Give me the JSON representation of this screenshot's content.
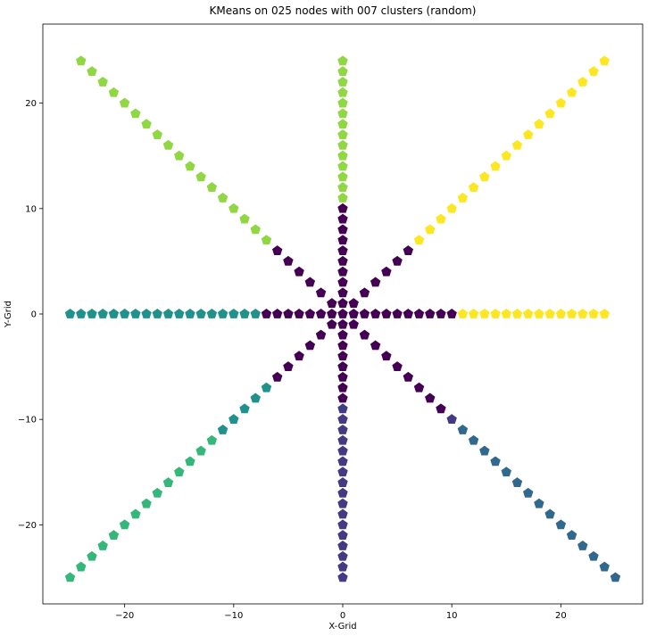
{
  "chart_data": {
    "type": "scatter",
    "title": "KMeans on 025 nodes with 007 clusters (random)",
    "xlabel": "X-Grid",
    "ylabel": "Y-Grid",
    "xlim": [
      -27.5,
      27.5
    ],
    "ylim": [
      -27.5,
      27.5
    ],
    "xticks": [
      -20,
      -10,
      0,
      10,
      20
    ],
    "yticks": [
      -20,
      -10,
      0,
      10,
      20
    ],
    "grid": false,
    "legend": "none",
    "marker": "pentagon",
    "cluster_colors": {
      "c0": "#440154",
      "c1": "#443983",
      "c2": "#31688e",
      "c3": "#21918c",
      "c4": "#35b779",
      "c5": "#90d743",
      "c6": "#fde725"
    },
    "clusters": [
      {
        "id": "c0",
        "points": [
          [
            0,
            0
          ],
          [
            1,
            0
          ],
          [
            2,
            0
          ],
          [
            3,
            0
          ],
          [
            4,
            0
          ],
          [
            5,
            0
          ],
          [
            6,
            0
          ],
          [
            7,
            0
          ],
          [
            8,
            0
          ],
          [
            9,
            0
          ],
          [
            10,
            0
          ],
          [
            -1,
            0
          ],
          [
            -2,
            0
          ],
          [
            -3,
            0
          ],
          [
            -4,
            0
          ],
          [
            -5,
            0
          ],
          [
            -6,
            0
          ],
          [
            -7,
            0
          ],
          [
            0,
            1
          ],
          [
            0,
            2
          ],
          [
            0,
            3
          ],
          [
            0,
            4
          ],
          [
            0,
            5
          ],
          [
            0,
            6
          ],
          [
            0,
            7
          ],
          [
            0,
            8
          ],
          [
            0,
            9
          ],
          [
            0,
            10
          ],
          [
            0,
            -1
          ],
          [
            0,
            -2
          ],
          [
            0,
            -3
          ],
          [
            0,
            -4
          ],
          [
            0,
            -5
          ],
          [
            0,
            -6
          ],
          [
            0,
            -7
          ],
          [
            0,
            -8
          ],
          [
            1,
            1
          ],
          [
            2,
            2
          ],
          [
            3,
            3
          ],
          [
            4,
            4
          ],
          [
            5,
            5
          ],
          [
            6,
            6
          ],
          [
            -1,
            1
          ],
          [
            -2,
            2
          ],
          [
            -3,
            3
          ],
          [
            -4,
            4
          ],
          [
            -5,
            5
          ],
          [
            -6,
            6
          ],
          [
            -1,
            -1
          ],
          [
            -2,
            -2
          ],
          [
            -3,
            -3
          ],
          [
            -4,
            -4
          ],
          [
            -5,
            -5
          ],
          [
            -6,
            -6
          ],
          [
            1,
            -1
          ],
          [
            2,
            -2
          ],
          [
            3,
            -3
          ],
          [
            4,
            -4
          ],
          [
            5,
            -5
          ],
          [
            6,
            -6
          ],
          [
            7,
            -7
          ],
          [
            8,
            -8
          ],
          [
            9,
            -9
          ]
        ]
      },
      {
        "id": "c1",
        "points": [
          [
            0,
            -9
          ],
          [
            0,
            -10
          ],
          [
            0,
            -11
          ],
          [
            0,
            -12
          ],
          [
            0,
            -13
          ],
          [
            0,
            -14
          ],
          [
            0,
            -15
          ],
          [
            0,
            -16
          ],
          [
            0,
            -17
          ],
          [
            0,
            -18
          ],
          [
            0,
            -19
          ],
          [
            0,
            -20
          ],
          [
            0,
            -21
          ],
          [
            0,
            -22
          ],
          [
            0,
            -23
          ],
          [
            0,
            -24
          ],
          [
            0,
            -25
          ],
          [
            10,
            -10
          ]
        ]
      },
      {
        "id": "c2",
        "points": [
          [
            11,
            -11
          ],
          [
            12,
            -12
          ],
          [
            13,
            -13
          ],
          [
            14,
            -14
          ],
          [
            15,
            -15
          ],
          [
            16,
            -16
          ],
          [
            17,
            -17
          ],
          [
            18,
            -18
          ],
          [
            19,
            -19
          ],
          [
            20,
            -20
          ],
          [
            21,
            -21
          ],
          [
            22,
            -22
          ],
          [
            23,
            -23
          ],
          [
            24,
            -24
          ],
          [
            25,
            -25
          ]
        ]
      },
      {
        "id": "c3",
        "points": [
          [
            -8,
            0
          ],
          [
            -9,
            0
          ],
          [
            -10,
            0
          ],
          [
            -11,
            0
          ],
          [
            -12,
            0
          ],
          [
            -13,
            0
          ],
          [
            -14,
            0
          ],
          [
            -15,
            0
          ],
          [
            -16,
            0
          ],
          [
            -17,
            0
          ],
          [
            -18,
            0
          ],
          [
            -19,
            0
          ],
          [
            -20,
            0
          ],
          [
            -21,
            0
          ],
          [
            -22,
            0
          ],
          [
            -23,
            0
          ],
          [
            -24,
            0
          ],
          [
            -25,
            0
          ],
          [
            -7,
            -7
          ],
          [
            -8,
            -8
          ],
          [
            -9,
            -9
          ],
          [
            -10,
            -10
          ],
          [
            -11,
            -11
          ]
        ]
      },
      {
        "id": "c4",
        "points": [
          [
            -12,
            -12
          ],
          [
            -13,
            -13
          ],
          [
            -14,
            -14
          ],
          [
            -15,
            -15
          ],
          [
            -16,
            -16
          ],
          [
            -17,
            -17
          ],
          [
            -18,
            -18
          ],
          [
            -19,
            -19
          ],
          [
            -20,
            -20
          ],
          [
            -21,
            -21
          ],
          [
            -22,
            -22
          ],
          [
            -23,
            -23
          ],
          [
            -24,
            -24
          ],
          [
            -25,
            -25
          ]
        ]
      },
      {
        "id": "c5",
        "points": [
          [
            0,
            11
          ],
          [
            0,
            12
          ],
          [
            0,
            13
          ],
          [
            0,
            14
          ],
          [
            0,
            15
          ],
          [
            0,
            16
          ],
          [
            0,
            17
          ],
          [
            0,
            18
          ],
          [
            0,
            19
          ],
          [
            0,
            20
          ],
          [
            0,
            21
          ],
          [
            0,
            22
          ],
          [
            0,
            23
          ],
          [
            0,
            24
          ],
          [
            -7,
            7
          ],
          [
            -8,
            8
          ],
          [
            -9,
            9
          ],
          [
            -10,
            10
          ],
          [
            -11,
            11
          ],
          [
            -12,
            12
          ],
          [
            -13,
            13
          ],
          [
            -14,
            14
          ],
          [
            -15,
            15
          ],
          [
            -16,
            16
          ],
          [
            -17,
            17
          ],
          [
            -18,
            18
          ],
          [
            -19,
            19
          ],
          [
            -20,
            20
          ],
          [
            -21,
            21
          ],
          [
            -22,
            22
          ],
          [
            -23,
            23
          ],
          [
            -24,
            24
          ]
        ]
      },
      {
        "id": "c6",
        "points": [
          [
            11,
            0
          ],
          [
            12,
            0
          ],
          [
            13,
            0
          ],
          [
            14,
            0
          ],
          [
            15,
            0
          ],
          [
            16,
            0
          ],
          [
            17,
            0
          ],
          [
            18,
            0
          ],
          [
            19,
            0
          ],
          [
            20,
            0
          ],
          [
            21,
            0
          ],
          [
            22,
            0
          ],
          [
            23,
            0
          ],
          [
            24,
            0
          ],
          [
            7,
            7
          ],
          [
            8,
            8
          ],
          [
            9,
            9
          ],
          [
            10,
            10
          ],
          [
            11,
            11
          ],
          [
            12,
            12
          ],
          [
            13,
            13
          ],
          [
            14,
            14
          ],
          [
            15,
            15
          ],
          [
            16,
            16
          ],
          [
            17,
            17
          ],
          [
            18,
            18
          ],
          [
            19,
            19
          ],
          [
            20,
            20
          ],
          [
            21,
            21
          ],
          [
            22,
            22
          ],
          [
            23,
            23
          ],
          [
            24,
            24
          ]
        ]
      }
    ]
  }
}
